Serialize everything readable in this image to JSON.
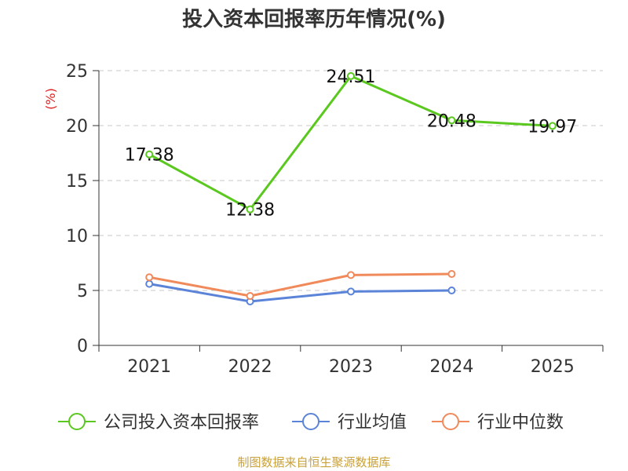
{
  "chart_data": {
    "type": "line",
    "title": "投入资本回报率历年情况(%)",
    "ylabel": "(%)",
    "categories": [
      "2021",
      "2022",
      "2023",
      "2024",
      "2025"
    ],
    "ylim": [
      0,
      25
    ],
    "yticks": [
      0,
      5,
      10,
      15,
      20,
      25
    ],
    "grid": true,
    "legend_position": "bottom",
    "series": [
      {
        "name": "公司投入资本回报率",
        "color": "#5ac81e",
        "values": [
          17.38,
          12.38,
          24.51,
          20.48,
          19.97
        ],
        "show_labels": true
      },
      {
        "name": "行业均值",
        "color": "#5b84d9",
        "values": [
          5.6,
          4.0,
          4.9,
          5.0,
          null
        ],
        "show_labels": false
      },
      {
        "name": "行业中位数",
        "color": "#f08a5b",
        "values": [
          6.2,
          4.5,
          6.4,
          6.5,
          null
        ],
        "show_labels": false
      }
    ]
  },
  "source_text": "制图数据来自恒生聚源数据库"
}
